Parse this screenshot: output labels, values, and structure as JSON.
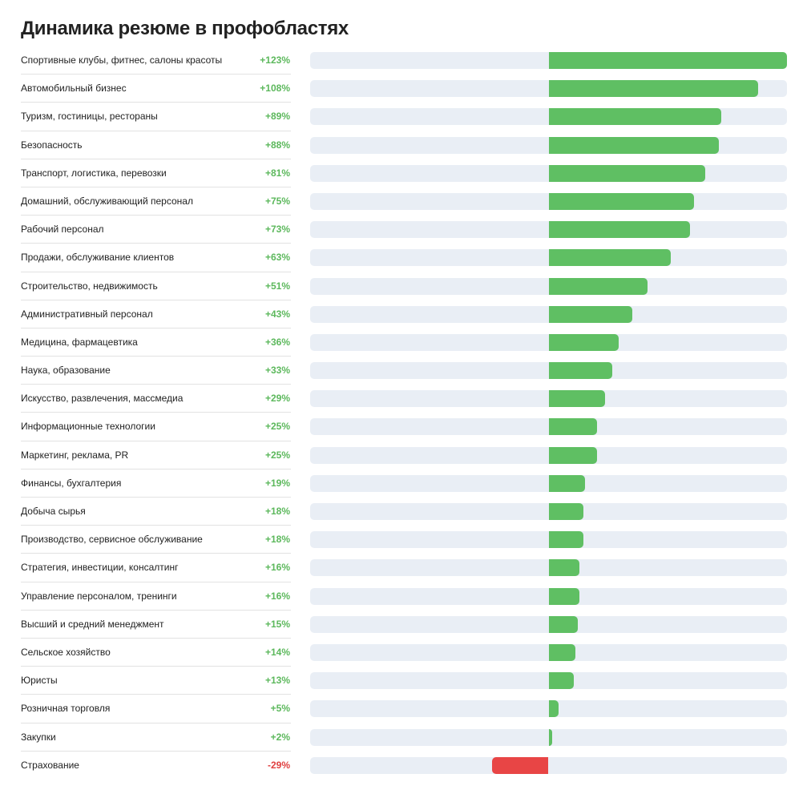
{
  "title": "Динамика резюме в профобластях",
  "colors": {
    "positive": "#5fbf63",
    "negative": "#e84545",
    "track": "#e9eef5",
    "positive_text": "#5cb85c",
    "negative_text": "#e04040"
  },
  "chart_data": {
    "type": "bar",
    "orientation": "horizontal",
    "title": "Динамика резюме в профобластях",
    "xlim": [
      -123,
      123
    ],
    "categories": [
      "Спортивные клубы, фитнес, салоны красоты",
      "Автомобильный бизнес",
      "Туризм, гостиницы, рестораны",
      "Безопасность",
      "Транспорт, логистика, перевозки",
      "Домашний, обслуживающий персонал",
      "Рабочий персонал",
      "Продажи, обслуживание клиентов",
      "Строительство, недвижимость",
      "Административный персонал",
      "Медицина, фармацевтика",
      "Наука, образование",
      "Искусство, развлечения, массмедиа",
      "Информационные технологии",
      "Маркетинг, реклама, PR",
      "Финансы, бухгалтерия",
      "Добыча сырья",
      "Производство, сервисное обслуживание",
      "Стратегия, инвестиции, консалтинг",
      "Управление персоналом, тренинги",
      "Высший и средний менеджмент",
      "Сельское хозяйство",
      "Юристы",
      "Розничная торговля",
      "Закупки",
      "Страхование"
    ],
    "values": [
      123,
      108,
      89,
      88,
      81,
      75,
      73,
      63,
      51,
      43,
      36,
      33,
      29,
      25,
      25,
      19,
      18,
      18,
      16,
      16,
      15,
      14,
      13,
      5,
      2,
      -29
    ],
    "labels": [
      "+123%",
      "+108%",
      "+89%",
      "+88%",
      "+81%",
      "+75%",
      "+73%",
      "+63%",
      "+51%",
      "+43%",
      "+36%",
      "+33%",
      "+29%",
      "+25%",
      "+25%",
      "+19%",
      "+18%",
      "+18%",
      "+16%",
      "+16%",
      "+15%",
      "+14%",
      "+13%",
      "+5%",
      "+2%",
      "-29%"
    ]
  }
}
